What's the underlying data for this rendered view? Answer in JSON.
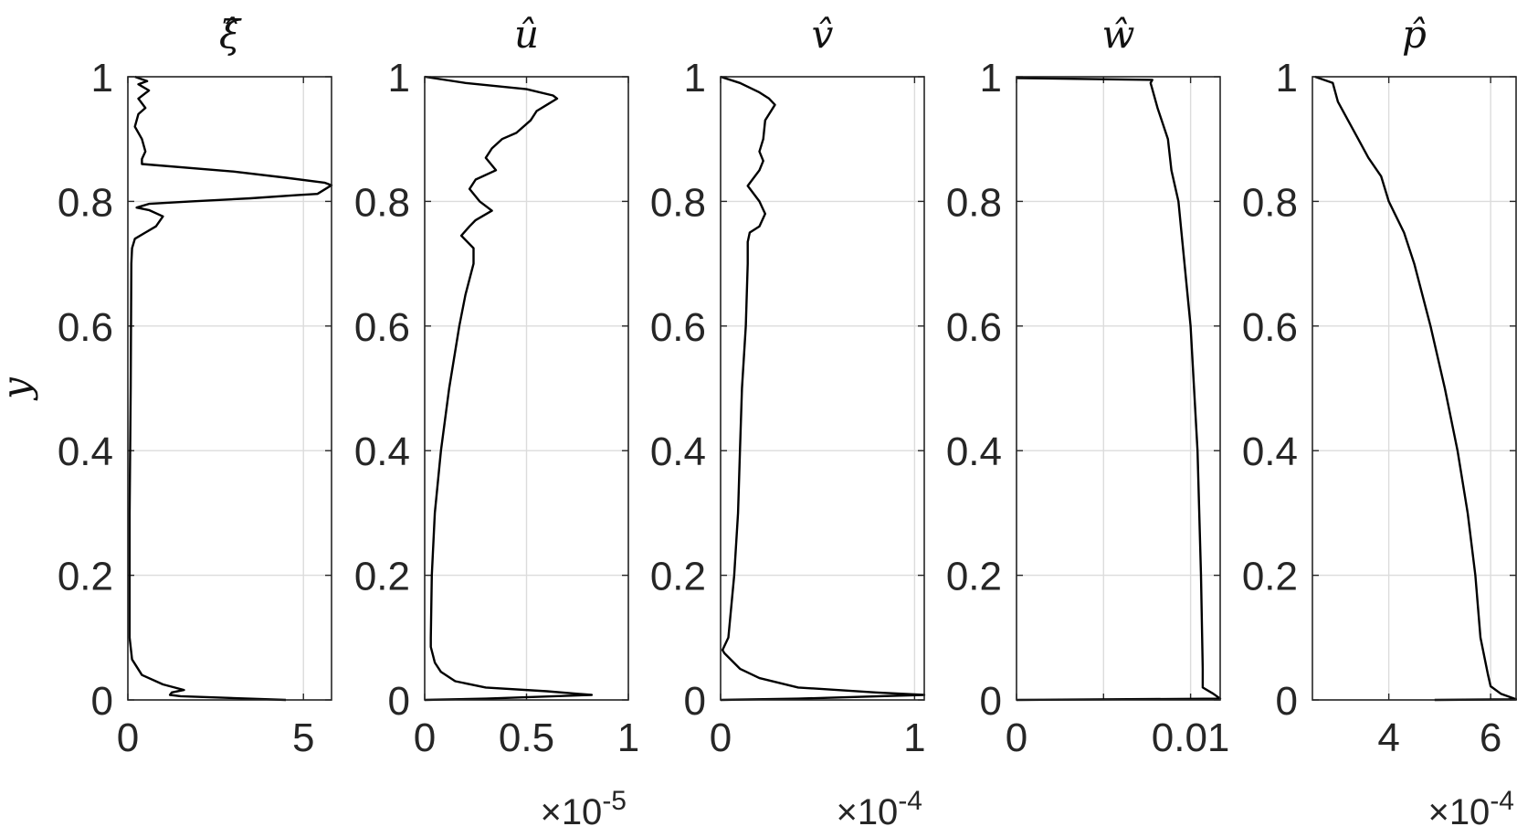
{
  "chart_data": [
    {
      "type": "line",
      "title": "ξ̂",
      "ylabel": "y",
      "xlim": [
        0,
        5.8
      ],
      "ylim": [
        0,
        1
      ],
      "xticks": [
        0,
        5
      ],
      "xtick_labels": [
        "0",
        "5"
      ],
      "yticks": [
        0,
        0.2,
        0.4,
        0.6,
        0.8,
        1
      ],
      "ytick_labels": [
        "0",
        "0.2",
        "0.4",
        "0.6",
        "0.8",
        "1"
      ],
      "exponent_label": "",
      "grid": true,
      "series": [
        {
          "points": [
            [
              4.5,
              0.0
            ],
            [
              1.5,
              0.006
            ],
            [
              1.2,
              0.008
            ],
            [
              1.25,
              0.012
            ],
            [
              1.6,
              0.016
            ],
            [
              1.0,
              0.025
            ],
            [
              0.4,
              0.04
            ],
            [
              0.12,
              0.065
            ],
            [
              0.05,
              0.1
            ],
            [
              0.05,
              0.3
            ],
            [
              0.08,
              0.5
            ],
            [
              0.1,
              0.7
            ],
            [
              0.12,
              0.725
            ],
            [
              0.2,
              0.74
            ],
            [
              0.5,
              0.75
            ],
            [
              0.8,
              0.76
            ],
            [
              1.0,
              0.776
            ],
            [
              0.6,
              0.786
            ],
            [
              0.25,
              0.79
            ],
            [
              0.6,
              0.796
            ],
            [
              1.8,
              0.8
            ],
            [
              3.5,
              0.805
            ],
            [
              4.8,
              0.81
            ],
            [
              5.4,
              0.812
            ],
            [
              5.8,
              0.826
            ],
            [
              5.6,
              0.83
            ],
            [
              4.5,
              0.838
            ],
            [
              3.0,
              0.848
            ],
            [
              0.4,
              0.86
            ],
            [
              0.4,
              0.868
            ],
            [
              0.5,
              0.88
            ],
            [
              0.4,
              0.9
            ],
            [
              0.2,
              0.92
            ],
            [
              0.3,
              0.94
            ],
            [
              0.5,
              0.95
            ],
            [
              0.3,
              0.965
            ],
            [
              0.6,
              0.978
            ],
            [
              0.3,
              0.988
            ],
            [
              0.55,
              0.993
            ],
            [
              0.3,
              0.998
            ],
            [
              0.2,
              1.0
            ]
          ]
        }
      ]
    },
    {
      "type": "line",
      "title": "û",
      "ylabel": "",
      "xlim": [
        0,
        1
      ],
      "ylim": [
        0,
        1
      ],
      "xticks": [
        0,
        0.5,
        1
      ],
      "xtick_labels": [
        "0",
        "0.5",
        "1"
      ],
      "yticks": [
        0,
        0.2,
        0.4,
        0.6,
        0.8,
        1
      ],
      "ytick_labels": [
        "0",
        "0.2",
        "0.4",
        "0.6",
        "0.8",
        "1"
      ],
      "exponent_label": "×10-5",
      "grid": true,
      "series": [
        {
          "points": [
            [
              0.0,
              0.0
            ],
            [
              0.3,
              0.002
            ],
            [
              0.82,
              0.008
            ],
            [
              0.6,
              0.014
            ],
            [
              0.3,
              0.02
            ],
            [
              0.15,
              0.03
            ],
            [
              0.08,
              0.045
            ],
            [
              0.05,
              0.06
            ],
            [
              0.03,
              0.085
            ],
            [
              0.03,
              0.1
            ],
            [
              0.035,
              0.2
            ],
            [
              0.05,
              0.3
            ],
            [
              0.08,
              0.4
            ],
            [
              0.12,
              0.5
            ],
            [
              0.17,
              0.6
            ],
            [
              0.2,
              0.65
            ],
            [
              0.24,
              0.7
            ],
            [
              0.24,
              0.725
            ],
            [
              0.18,
              0.745
            ],
            [
              0.22,
              0.76
            ],
            [
              0.25,
              0.77
            ],
            [
              0.33,
              0.785
            ],
            [
              0.27,
              0.8
            ],
            [
              0.22,
              0.82
            ],
            [
              0.25,
              0.835
            ],
            [
              0.35,
              0.85
            ],
            [
              0.3,
              0.87
            ],
            [
              0.33,
              0.885
            ],
            [
              0.38,
              0.9
            ],
            [
              0.45,
              0.91
            ],
            [
              0.52,
              0.93
            ],
            [
              0.55,
              0.945
            ],
            [
              0.6,
              0.955
            ],
            [
              0.65,
              0.965
            ],
            [
              0.63,
              0.97
            ],
            [
              0.5,
              0.98
            ],
            [
              0.2,
              0.99
            ],
            [
              0.0,
              1.0
            ]
          ]
        }
      ]
    },
    {
      "type": "line",
      "title": "v̂",
      "ylabel": "",
      "xlim": [
        0,
        1.05
      ],
      "ylim": [
        0,
        1
      ],
      "xticks": [
        0,
        1
      ],
      "xtick_labels": [
        "0",
        "1"
      ],
      "yticks": [
        0,
        0.2,
        0.4,
        0.6,
        0.8,
        1
      ],
      "ytick_labels": [
        "0",
        "0.2",
        "0.4",
        "0.6",
        "0.8",
        "1"
      ],
      "exponent_label": "×10-4",
      "grid": true,
      "series": [
        {
          "points": [
            [
              0.0,
              0.0
            ],
            [
              0.4,
              0.002
            ],
            [
              1.05,
              0.008
            ],
            [
              0.8,
              0.012
            ],
            [
              0.4,
              0.02
            ],
            [
              0.2,
              0.035
            ],
            [
              0.1,
              0.05
            ],
            [
              0.02,
              0.075
            ],
            [
              0.01,
              0.08
            ],
            [
              0.04,
              0.1
            ],
            [
              0.07,
              0.2
            ],
            [
              0.09,
              0.3
            ],
            [
              0.1,
              0.4
            ],
            [
              0.11,
              0.5
            ],
            [
              0.13,
              0.6
            ],
            [
              0.14,
              0.7
            ],
            [
              0.14,
              0.735
            ],
            [
              0.15,
              0.75
            ],
            [
              0.2,
              0.76
            ],
            [
              0.23,
              0.78
            ],
            [
              0.2,
              0.8
            ],
            [
              0.14,
              0.825
            ],
            [
              0.2,
              0.85
            ],
            [
              0.22,
              0.865
            ],
            [
              0.2,
              0.88
            ],
            [
              0.22,
              0.9
            ],
            [
              0.23,
              0.93
            ],
            [
              0.28,
              0.955
            ],
            [
              0.25,
              0.965
            ],
            [
              0.2,
              0.975
            ],
            [
              0.1,
              0.99
            ],
            [
              0.0,
              1.0
            ]
          ]
        }
      ]
    },
    {
      "type": "line",
      "title": "ŵ",
      "ylabel": "",
      "xlim": [
        0,
        0.0117
      ],
      "ylim": [
        0,
        1
      ],
      "xticks": [
        0,
        0.005,
        0.01
      ],
      "xtick_labels": [
        "0",
        "",
        "0.01"
      ],
      "yticks": [
        0,
        0.2,
        0.4,
        0.6,
        0.8,
        1
      ],
      "ytick_labels": [
        "0",
        "0.2",
        "0.4",
        "0.6",
        "0.8",
        "1"
      ],
      "exponent_label": "",
      "grid": true,
      "series": [
        {
          "points": [
            [
              0.0,
              0.0
            ],
            [
              0.0117,
              0.002
            ],
            [
              0.0113,
              0.01
            ],
            [
              0.0107,
              0.02
            ],
            [
              0.0107,
              0.05
            ],
            [
              0.0106,
              0.2
            ],
            [
              0.0104,
              0.4
            ],
            [
              0.01,
              0.6
            ],
            [
              0.0093,
              0.8
            ],
            [
              0.0089,
              0.85
            ],
            [
              0.0087,
              0.9
            ],
            [
              0.0081,
              0.95
            ],
            [
              0.0078,
              0.98
            ],
            [
              0.0077,
              0.99
            ],
            [
              0.0078,
              0.995
            ],
            [
              0.0,
              0.998
            ]
          ]
        }
      ]
    },
    {
      "type": "line",
      "title": "p̂",
      "ylabel": "",
      "xlim": [
        2.5,
        6.5
      ],
      "ylim": [
        0,
        1
      ],
      "xticks": [
        4,
        6
      ],
      "xtick_labels": [
        "4",
        "6"
      ],
      "yticks": [
        0,
        0.2,
        0.4,
        0.6,
        0.8,
        1
      ],
      "ytick_labels": [
        "0",
        "0.2",
        "0.4",
        "0.6",
        "0.8",
        "1"
      ],
      "exponent_label": "×10-4",
      "grid": true,
      "series": [
        {
          "points": [
            [
              4.9,
              0.0
            ],
            [
              6.5,
              0.001
            ],
            [
              6.2,
              0.01
            ],
            [
              6.0,
              0.022
            ],
            [
              5.95,
              0.04
            ],
            [
              5.8,
              0.1
            ],
            [
              5.7,
              0.2
            ],
            [
              5.55,
              0.3
            ],
            [
              5.35,
              0.4
            ],
            [
              5.1,
              0.5
            ],
            [
              4.82,
              0.6
            ],
            [
              4.5,
              0.7
            ],
            [
              4.3,
              0.75
            ],
            [
              4.0,
              0.8
            ],
            [
              3.85,
              0.84
            ],
            [
              3.6,
              0.87
            ],
            [
              3.4,
              0.9
            ],
            [
              3.2,
              0.93
            ],
            [
              3.0,
              0.96
            ],
            [
              2.95,
              0.975
            ],
            [
              2.9,
              0.99
            ],
            [
              2.55,
              1.0
            ]
          ]
        }
      ]
    }
  ]
}
